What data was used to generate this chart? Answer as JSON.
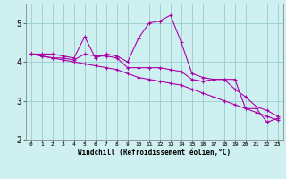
{
  "xlabel": "Windchill (Refroidissement éolien,°C)",
  "background_color": "#cff0f0",
  "grid_color": "#99cccc",
  "line_color": "#aa00aa",
  "x_hours": [
    0,
    1,
    2,
    3,
    4,
    5,
    6,
    7,
    8,
    9,
    10,
    11,
    12,
    13,
    14,
    15,
    16,
    17,
    18,
    19,
    20,
    21,
    22,
    23
  ],
  "y_line1": [
    4.2,
    4.2,
    4.2,
    4.15,
    4.1,
    4.65,
    4.1,
    4.2,
    4.15,
    4.0,
    4.6,
    5.0,
    5.05,
    5.2,
    4.5,
    3.7,
    3.6,
    3.55,
    3.55,
    3.55,
    2.8,
    2.8,
    2.45,
    2.55
  ],
  "y_line2": [
    4.2,
    4.15,
    4.1,
    4.1,
    4.05,
    4.2,
    4.15,
    4.15,
    4.1,
    3.85,
    3.85,
    3.85,
    3.85,
    3.8,
    3.75,
    3.55,
    3.5,
    3.55,
    3.55,
    3.3,
    3.1,
    2.85,
    2.75,
    2.6
  ],
  "y_line3": [
    4.2,
    4.15,
    4.1,
    4.05,
    4.0,
    3.95,
    3.9,
    3.85,
    3.8,
    3.7,
    3.6,
    3.55,
    3.5,
    3.45,
    3.4,
    3.3,
    3.2,
    3.1,
    3.0,
    2.9,
    2.8,
    2.7,
    2.6,
    2.5
  ],
  "ylim": [
    2.0,
    5.5
  ],
  "yticks": [
    2,
    3,
    4,
    5
  ],
  "xlim": [
    -0.5,
    23.5
  ],
  "figsize": [
    3.2,
    2.0
  ],
  "dpi": 100
}
